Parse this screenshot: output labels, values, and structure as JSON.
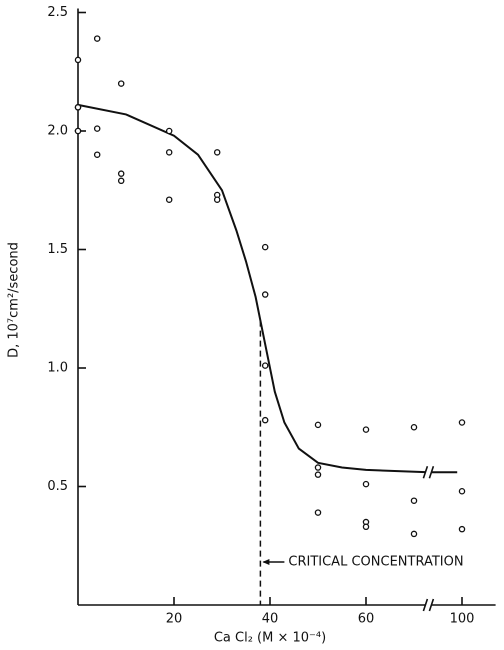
{
  "chart_data": {
    "type": "scatter",
    "x_label": "Ca Cl₂ (M × 10⁻⁴)",
    "y_label": "D, 10⁷cm²/second",
    "xlim": [
      0,
      107
    ],
    "ylim": [
      0,
      2.5
    ],
    "x_break": [
      73,
      93
    ],
    "xticks": [
      20,
      40,
      60,
      100
    ],
    "yticks": [
      0.5,
      {
        "value": 1,
        "label": "1.0"
      },
      1.5,
      {
        "value": 2,
        "label": "2.0"
      },
      2.5
    ],
    "color": "#111111",
    "series": [
      {
        "x": [
          0,
          0,
          0,
          0,
          0,
          4,
          4,
          4,
          9,
          9,
          9,
          19,
          19,
          19,
          29,
          29,
          29,
          39,
          39,
          39,
          39,
          50,
          50,
          50,
          50,
          60,
          60,
          60,
          60,
          70,
          70,
          70,
          100,
          100,
          100
        ],
        "values": [
          2.3,
          2.1,
          2.1,
          2.0,
          2.0,
          2.39,
          2.01,
          1.9,
          2.2,
          1.82,
          1.79,
          2.0,
          1.91,
          1.71,
          1.91,
          1.73,
          1.71,
          1.51,
          1.31,
          1.01,
          0.78,
          0.76,
          0.58,
          0.55,
          0.39,
          0.74,
          0.51,
          0.35,
          0.33,
          0.75,
          0.44,
          0.3,
          0.77,
          0.48,
          0.32
        ]
      }
    ],
    "curve": {
      "x": [
        0,
        10,
        20,
        25,
        30,
        33,
        35,
        37,
        39,
        41,
        43,
        46,
        50,
        55,
        60,
        73,
        99
      ],
      "values": [
        2.11,
        2.07,
        1.98,
        1.9,
        1.75,
        1.58,
        1.45,
        1.3,
        1.1,
        0.9,
        0.77,
        0.66,
        0.6,
        0.58,
        0.57,
        0.56,
        0.56
      ]
    },
    "critical_concentration": {
      "x": 38,
      "label": "CRITICAL CONCENTRATION"
    }
  }
}
